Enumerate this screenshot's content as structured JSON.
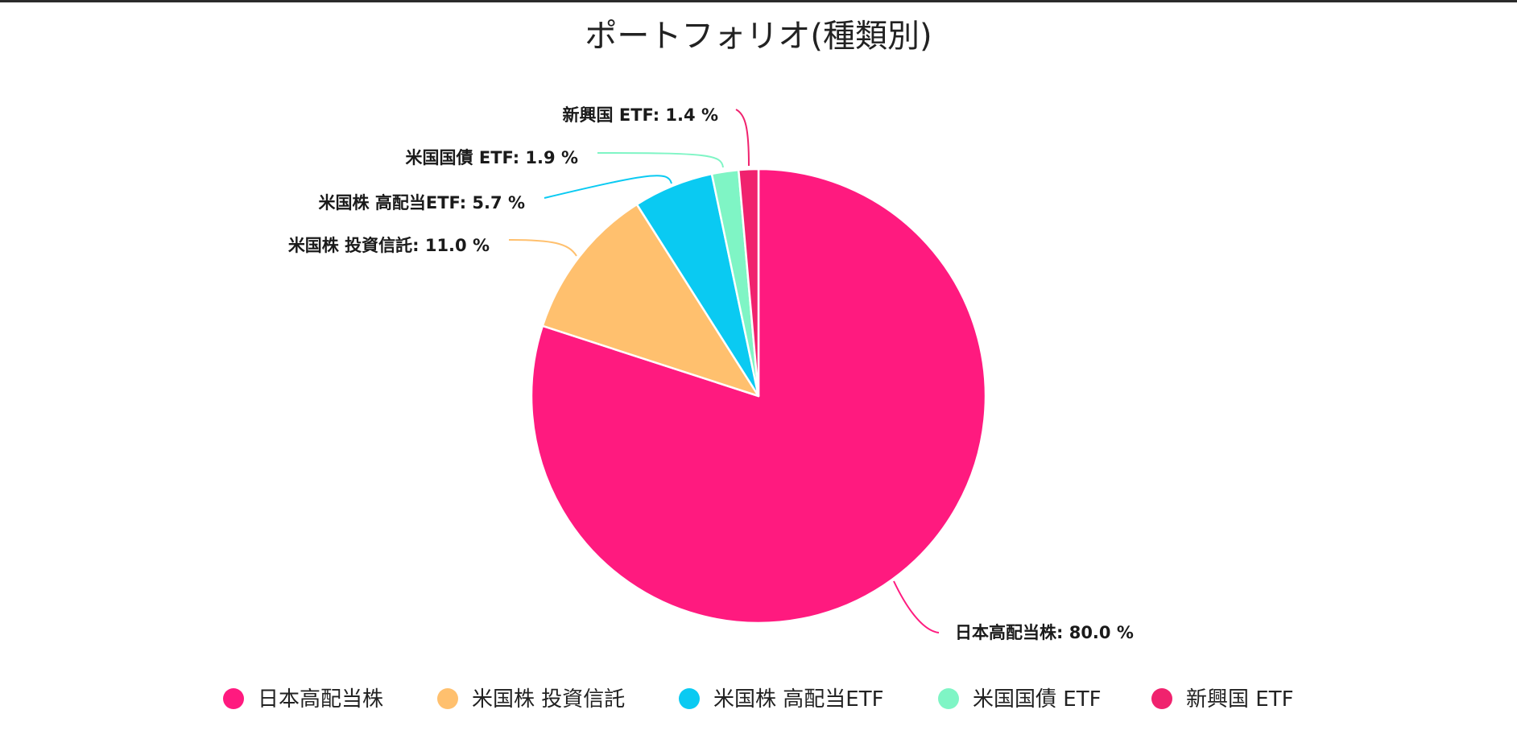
{
  "chart_data": {
    "type": "pie",
    "title": "ポートフォリオ(種類別)",
    "unit": "%",
    "start_angle_deg": 0,
    "direction": "clockwise",
    "legend_position": "bottom",
    "slices": [
      {
        "name": "日本高配当株",
        "value": 80.0,
        "label": "日本高配当株: 80.0 %",
        "color": "#FF1A7F"
      },
      {
        "name": "米国株 投資信託",
        "value": 11.0,
        "label": "米国株 投資信託: 11.0 %",
        "color": "#FFC06E"
      },
      {
        "name": "米国株 高配当ETF",
        "value": 5.7,
        "label": "米国株 高配当ETF: 5.7 %",
        "color": "#0ACAF2"
      },
      {
        "name": "米国国債 ETF",
        "value": 1.9,
        "label": "米国国債 ETF: 1.9 %",
        "color": "#7FF5C5"
      },
      {
        "name": "新興国 ETF",
        "value": 1.4,
        "label": "新興国 ETF: 1.4 %",
        "color": "#F0226E"
      }
    ]
  }
}
